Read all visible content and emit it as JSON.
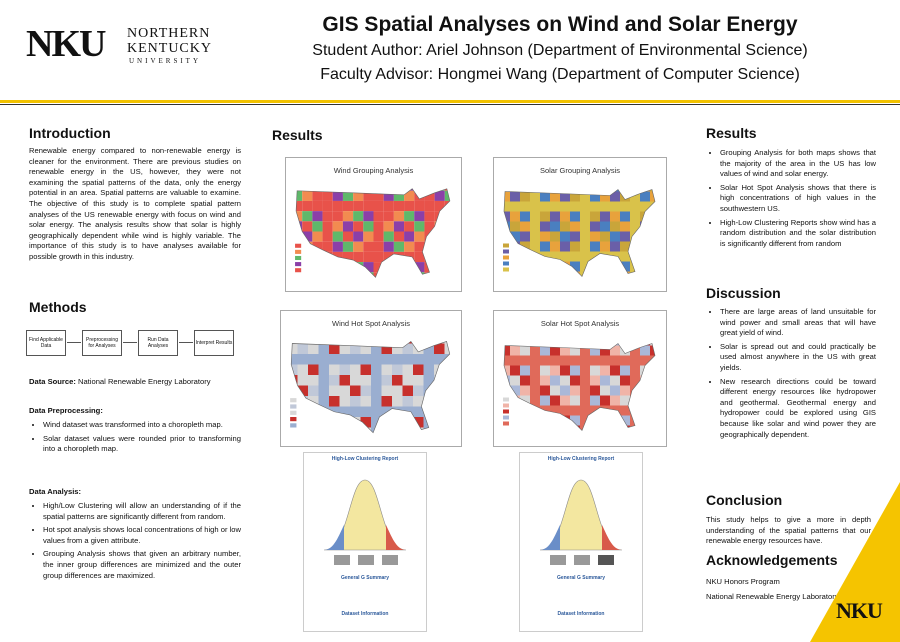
{
  "header": {
    "logo": {
      "mark": "NKU",
      "line1": "NORTHERN",
      "line2": "KENTUCKY",
      "line3": "UNIVERSITY"
    },
    "title": "GIS Spatial Analyses on Wind and Solar Energy",
    "author": "Student Author: Ariel Johnson (Department of Environmental Science)",
    "advisor": "Faculty Advisor: Hongmei Wang (Department of Computer Science)"
  },
  "introduction": {
    "heading": "Introduction",
    "text": "Renewable energy compared to non-renewable energy is cleaner for the environment. There are previous studies on renewable energy in the US, however, they were not examining the spatial patterns of the data, only the energy potential in an area. Spatial patterns are valuable to examine. The objective of this study is to complete spatial pattern analyses of the US renewable energy with focus on wind and solar energy. The analysis results show that solar is highly geographically dependent while wind is highly variable. The importance of this study is to have analyses available for possible growth in this industry."
  },
  "methods": {
    "heading": "Methods",
    "flow": [
      "Find Applicable Data",
      "Preprocessing for Analyses",
      "Run Data Analyses",
      "Interpret Results"
    ],
    "data_source": {
      "label": "Data Source:",
      "text": "National Renewable Energy Laboratory"
    },
    "preprocessing": {
      "heading": "Data Preprocessing:",
      "items": [
        "Wind dataset was transformed into a choropleth map.",
        "Solar dataset values were rounded prior to transforming into a choropleth map."
      ]
    },
    "analysis": {
      "heading": "Data Analysis:",
      "items": [
        "High/Low Clustering will allow an understanding of if the spatial patterns are significantly different from random.",
        "Hot spot analysis shows local concentrations of high or low values from a given attribute.",
        "Grouping Analysis shows that given an arbitrary number, the inner group differences are minimized and the outer group differences are maximized."
      ]
    }
  },
  "figures": {
    "heading": "Results",
    "maps": [
      {
        "title": "Wind Grouping Analysis"
      },
      {
        "title": "Solar Grouping Analysis"
      },
      {
        "title": "Wind Hot Spot Analysis"
      },
      {
        "title": "Solar Hot Spot Analysis"
      }
    ],
    "reports": [
      {
        "title": "High-Low Clustering Report",
        "summary": "General G Summary",
        "dataset": "Dataset Information"
      },
      {
        "title": "High-Low Clustering Report",
        "summary": "General G Summary",
        "dataset": "Dataset Information"
      }
    ]
  },
  "results": {
    "heading": "Results",
    "items": [
      "Grouping Analysis for both maps shows that the majority of the area in the US has low values of wind and solar energy.",
      "Solar Hot Spot Analysis shows that there is high concentrations of high values in the southwestern US.",
      "High-Low Clustering Reports show wind has a random distribution and the solar distribution is significantly different from random"
    ]
  },
  "discussion": {
    "heading": "Discussion",
    "items": [
      "There are large areas of land unsuitable for wind power and small areas that will have great yield of wind.",
      "Solar is spread out and could practically be used almost anywhere in the US with great yields.",
      "New research directions could be toward different energy resources like hydropower and geothermal. Geothermal energy and hydropower could be explored using GIS because like solar and wind power they are geographically dependent."
    ]
  },
  "conclusion": {
    "heading": "Conclusion",
    "text": "This study helps to give a more in depth understanding of the spatial patterns that our renewable energy resources have."
  },
  "acknowledgements": {
    "heading": "Acknowledgements",
    "items": [
      "NKU Honors Program",
      "National Renewable Energy Laboratory"
    ]
  },
  "footer_logo": "NKU"
}
